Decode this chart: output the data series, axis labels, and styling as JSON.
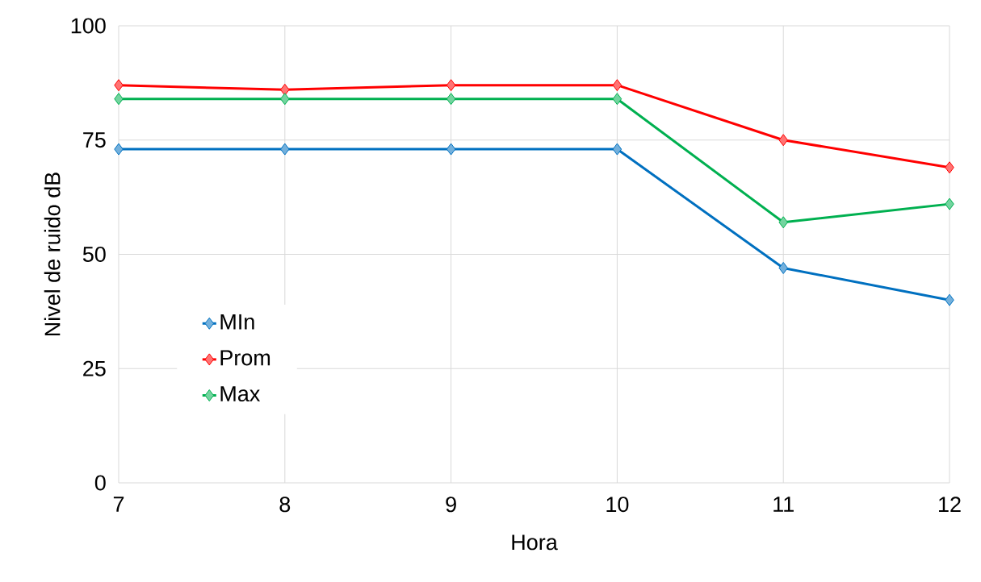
{
  "chart_data": {
    "type": "line",
    "xlabel": "Hora",
    "ylabel": "Nivel de ruido dB",
    "x": [
      7,
      8,
      9,
      10,
      11,
      12
    ],
    "series": [
      {
        "name": "MIn",
        "color": "#0070c0",
        "values": [
          73,
          73,
          73,
          73,
          47,
          40
        ]
      },
      {
        "name": "Prom",
        "color": "#ff0000",
        "values": [
          87,
          86,
          87,
          87,
          75,
          69
        ]
      },
      {
        "name": "Max",
        "color": "#00b050",
        "values": [
          84,
          84,
          84,
          84,
          57,
          61
        ]
      }
    ],
    "xlim": [
      7,
      12
    ],
    "xticks": [
      7,
      8,
      9,
      10,
      11,
      12
    ],
    "ylim": [
      0,
      100
    ],
    "yticks": [
      0,
      25,
      50,
      75,
      100
    ],
    "grid": true,
    "legend": "left",
    "marker": "diamond",
    "line_style": "solid"
  }
}
